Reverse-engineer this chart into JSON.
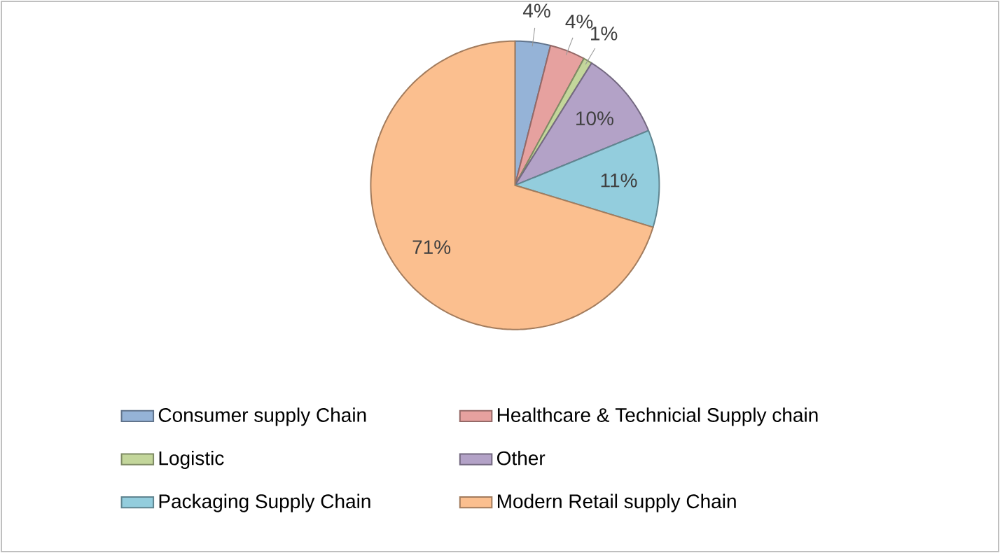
{
  "chart_data": {
    "type": "pie",
    "categories": [
      "Consumer supply Chain",
      "Healthcare & Technicial Supply chain",
      "Logistic",
      "Other",
      "Packaging Supply Chain",
      "Modern Retail supply Chain"
    ],
    "values": [
      4,
      4,
      1,
      10,
      11,
      71
    ],
    "value_labels": [
      "4%",
      "4%",
      "1%",
      "10%",
      "11%",
      "71%"
    ],
    "colors": [
      "#95b3d7",
      "#e6a19f",
      "#c3d69b",
      "#b3a2c7",
      "#93cddd",
      "#fbbf8f"
    ],
    "legend": "bottom"
  }
}
